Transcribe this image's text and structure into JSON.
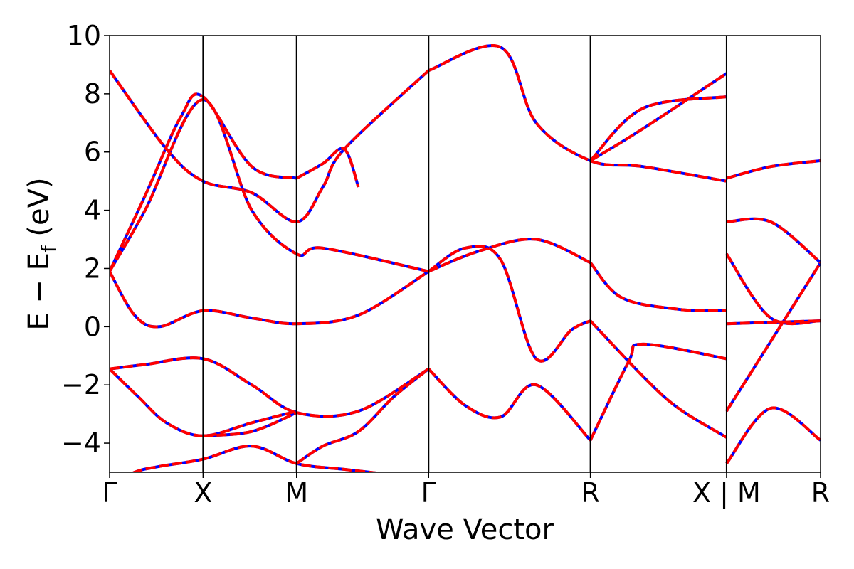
{
  "chart_data": {
    "type": "line",
    "title": "",
    "xlabel": "Wave Vector",
    "ylabel_main": "E − E",
    "ylabel_sub": "f",
    "ylabel_unit": " (eV)",
    "ylim": [
      -5,
      10
    ],
    "yticks": [
      -4,
      -2,
      0,
      2,
      4,
      6,
      8,
      10
    ],
    "ytick_labels": [
      "−4",
      "−2",
      "0",
      "2",
      "4",
      "6",
      "8",
      "10"
    ],
    "xlim": [
      0,
      1
    ],
    "kpoints": [
      {
        "x": 0.0,
        "label": "Γ"
      },
      {
        "x": 0.1315,
        "label": "X"
      },
      {
        "x": 0.263,
        "label": "M"
      },
      {
        "x": 0.4487,
        "label": "Γ"
      },
      {
        "x": 0.6763,
        "label": "R"
      },
      {
        "x": 0.8678,
        "label": "X | M"
      },
      {
        "x": 1.0,
        "label": "R"
      }
    ],
    "segment_break_x": 0.8678,
    "colors": {
      "series_a": "#0000ff",
      "series_b": "#ff0000",
      "axes": "#000000"
    },
    "series": [
      {
        "style": "solid",
        "color": "#0000ff",
        "bands": [
          {
            "x": [
              0,
              0.035,
              0.07,
              0.1315,
              0.2,
              0.263,
              0.33,
              0.4,
              0.4487
            ],
            "y": [
              -5.5,
              -5.0,
              -4.8,
              -4.55,
              -4.1,
              -4.7,
              -4.9,
              -5.1,
              -5.3
            ]
          },
          {
            "x": [
              0,
              0.04,
              0.08,
              0.1315,
              0.2,
              0.263
            ],
            "y": [
              -1.45,
              -2.4,
              -3.3,
              -3.75,
              -3.3,
              -2.9
            ]
          },
          {
            "x": [
              0,
              0.05,
              0.1315,
              0.2,
              0.263,
              0.35,
              0.4487
            ],
            "y": [
              -1.45,
              -1.3,
              -1.1,
              -2.0,
              -2.95,
              -2.9,
              -1.45
            ]
          },
          {
            "x": [
              0.263,
              0.3,
              0.35,
              0.4,
              0.4487
            ],
            "y": [
              -4.7,
              -4.1,
              -3.6,
              -2.4,
              -1.45
            ]
          },
          {
            "x": [
              0.1315,
              0.2,
              0.263
            ],
            "y": [
              -3.75,
              -3.6,
              -2.95
            ]
          },
          {
            "x": [
              0,
              0.035,
              0.07,
              0.1315,
              0.2,
              0.263,
              0.35,
              0.4487
            ],
            "y": [
              1.9,
              0.4,
              0.0,
              0.55,
              0.3,
              0.1,
              0.4,
              1.9
            ]
          },
          {
            "x": [
              0,
              0.05,
              0.1,
              0.1315,
              0.2,
              0.263
            ],
            "y": [
              1.9,
              4.5,
              7.2,
              7.9,
              5.5,
              5.1
            ]
          },
          {
            "x": [
              0,
              0.08,
              0.1315,
              0.2,
              0.263,
              0.3,
              0.33,
              0.4487
            ],
            "y": [
              8.8,
              6.1,
              5.0,
              4.6,
              3.6,
              4.8,
              6.1,
              8.8
            ]
          },
          {
            "x": [
              0.263,
              0.3,
              0.33,
              0.35
            ],
            "y": [
              5.1,
              5.6,
              6.1,
              4.8
            ]
          },
          {
            "x": [
              0,
              0.05,
              0.1315,
              0.2,
              0.263,
              0.3,
              0.4487
            ],
            "y": [
              1.9,
              4.0,
              7.8,
              4.0,
              2.5,
              2.7,
              1.9
            ]
          },
          {
            "x": [
              0.4487,
              0.5,
              0.55,
              0.6,
              0.6763
            ],
            "y": [
              -1.45,
              -2.7,
              -3.1,
              -2.0,
              -3.9
            ]
          },
          {
            "x": [
              0.4487,
              0.52,
              0.6,
              0.6763
            ],
            "y": [
              1.9,
              2.6,
              3.0,
              2.2
            ]
          },
          {
            "x": [
              0.4487,
              0.5,
              0.55,
              0.6,
              0.65,
              0.6763
            ],
            "y": [
              1.9,
              2.7,
              2.3,
              -1.1,
              -0.1,
              0.2
            ]
          },
          {
            "x": [
              0.4487,
              0.55,
              0.6,
              0.6763,
              0.75,
              0.8678
            ],
            "y": [
              8.8,
              9.6,
              7.0,
              5.7,
              5.5,
              5.0
            ]
          },
          {
            "x": [
              0.6763,
              0.75,
              0.8,
              0.8678
            ],
            "y": [
              0.2,
              -1.7,
              -2.8,
              -3.8
            ]
          },
          {
            "x": [
              0.6763,
              0.72,
              0.8,
              0.8678
            ],
            "y": [
              2.2,
              1.0,
              0.6,
              0.55
            ]
          },
          {
            "x": [
              0.6763,
              0.73,
              0.75,
              0.8678
            ],
            "y": [
              -3.9,
              -1.2,
              -0.6,
              -1.1
            ]
          },
          {
            "x": [
              0.6763,
              0.75,
              0.8678
            ],
            "y": [
              5.7,
              6.8,
              8.7
            ]
          },
          {
            "x": [
              0.6763,
              0.75,
              0.8678
            ],
            "y": [
              5.7,
              7.5,
              7.9
            ]
          },
          {
            "x": [
              0.8678,
              0.93,
              1.0
            ],
            "y": [
              5.1,
              5.5,
              5.7
            ]
          },
          {
            "x": [
              0.8678,
              0.93,
              1.0
            ],
            "y": [
              3.6,
              3.6,
              2.2
            ]
          },
          {
            "x": [
              0.8678,
              0.93,
              1.0
            ],
            "y": [
              2.5,
              0.3,
              0.2
            ]
          },
          {
            "x": [
              0.8678,
              0.93,
              1.0
            ],
            "y": [
              0.1,
              0.15,
              0.2
            ]
          },
          {
            "x": [
              0.8678,
              0.93,
              1.0
            ],
            "y": [
              -2.9,
              -0.5,
              2.2
            ]
          },
          {
            "x": [
              0.8678,
              0.93,
              1.0
            ],
            "y": [
              -4.7,
              -2.8,
              -3.9
            ]
          }
        ]
      },
      {
        "style": "dashed",
        "color": "#ff0000",
        "note": "overlays the solid series with identical values"
      }
    ]
  }
}
